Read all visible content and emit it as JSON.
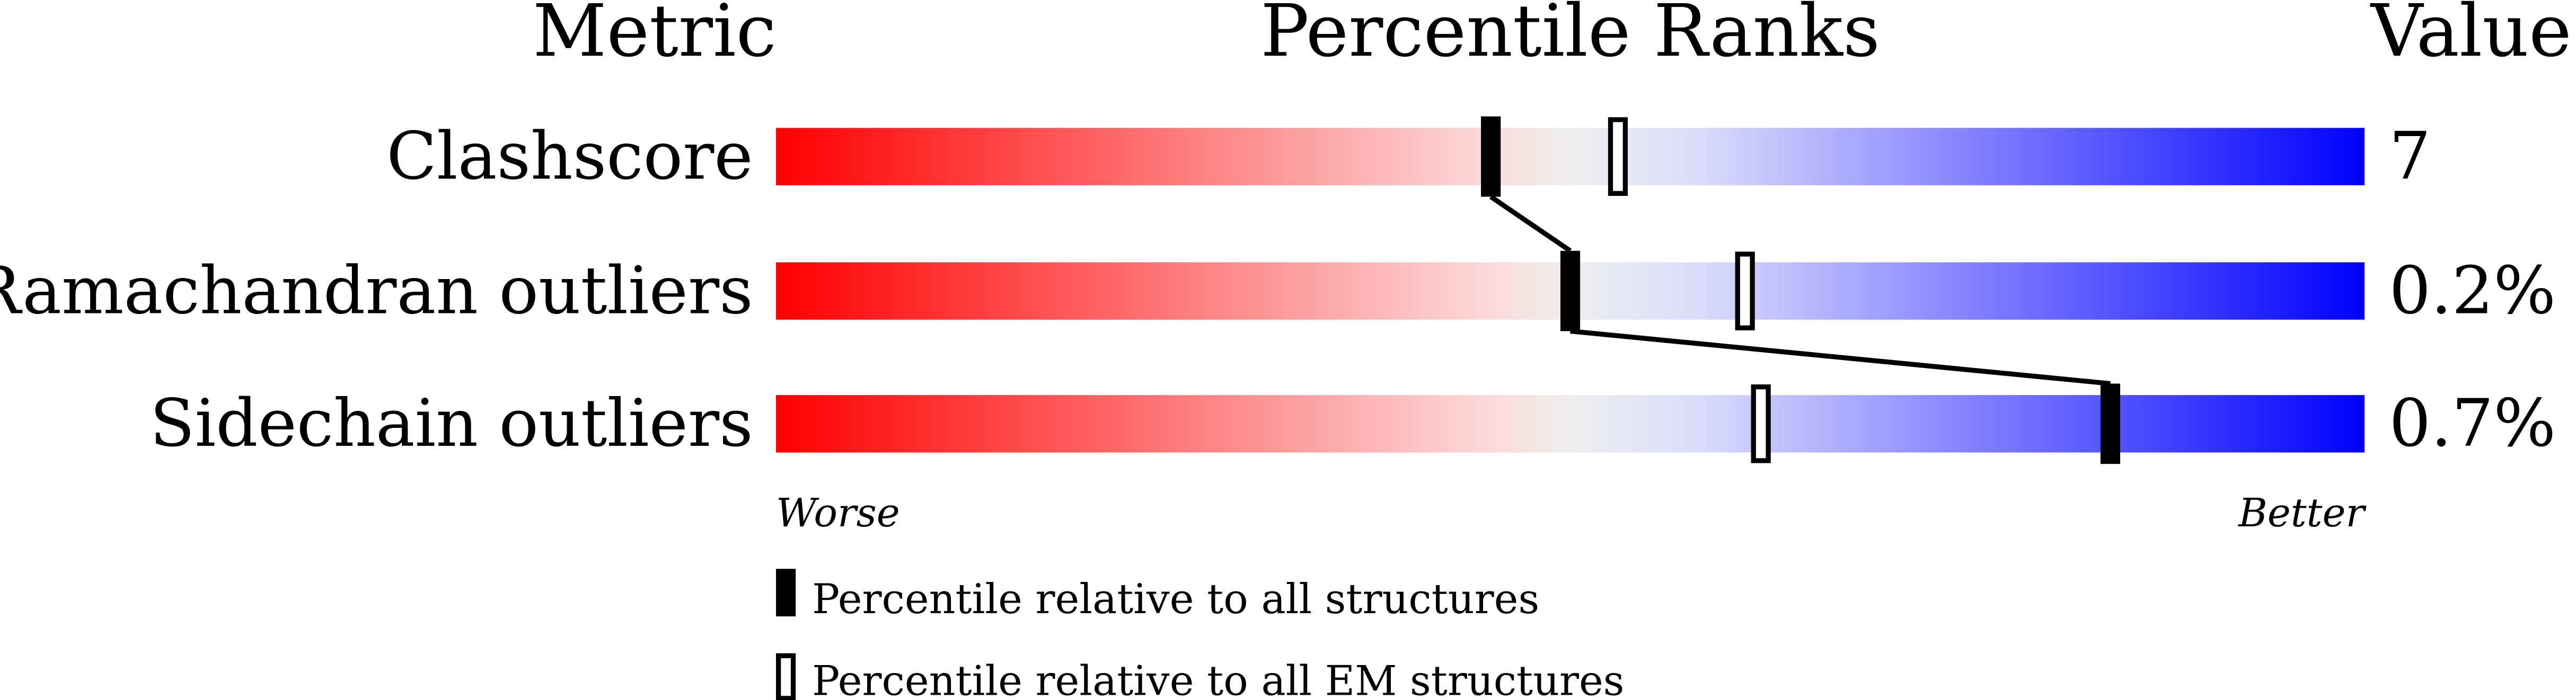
{
  "chart_data": {
    "type": "bar",
    "headers": {
      "metric": "Metric",
      "ranks": "Percentile Ranks",
      "value": "Value"
    },
    "xlim": [
      0,
      100
    ],
    "axis_labels": {
      "left": "Worse",
      "right": "Better"
    },
    "gradient_colors": [
      "#ff0000",
      "#fbdada",
      "#eeeeee",
      "#dcdcfc",
      "#0000ff"
    ],
    "rows": [
      {
        "metric": "Clashscore",
        "value": "7",
        "percentile_all": 45,
        "percentile_em": 53
      },
      {
        "metric": "Ramachandran outliers",
        "value": "0.2%",
        "percentile_all": 50,
        "percentile_em": 61
      },
      {
        "metric": "Sidechain outliers",
        "value": "0.7%",
        "percentile_all": 84,
        "percentile_em": 62
      }
    ],
    "legend": [
      {
        "marker": "filled",
        "label": "Percentile relative to all structures"
      },
      {
        "marker": "open",
        "label": "Percentile relative to all EM structures"
      }
    ]
  }
}
